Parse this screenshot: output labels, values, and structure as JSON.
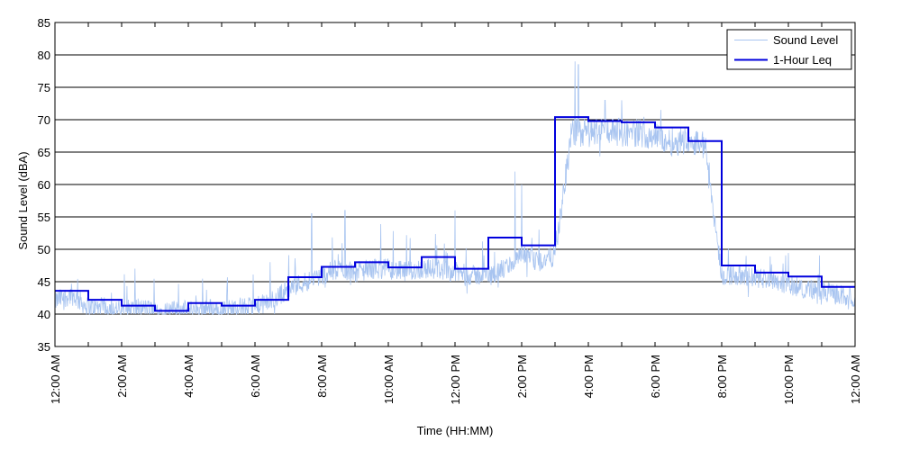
{
  "chart_data": {
    "type": "line",
    "title": "",
    "xlabel": "Time (HH:MM)",
    "ylabel": "Sound Level (dBA)",
    "ylim": [
      35,
      85
    ],
    "y_ticks": [
      "35",
      "40",
      "45",
      "50",
      "55",
      "60",
      "65",
      "70",
      "75",
      "80",
      "85"
    ],
    "xlim_hours": [
      0,
      24
    ],
    "x_tick_hours": [
      0,
      2,
      4,
      6,
      8,
      10,
      12,
      14,
      16,
      18,
      20,
      22,
      24
    ],
    "x_ticks": [
      "12:00 AM",
      "2:00 AM",
      "4:00 AM",
      "6:00 AM",
      "8:00 AM",
      "10:00 AM",
      "12:00 PM",
      "2:00 PM",
      "4:00 PM",
      "6:00 PM",
      "8:00 PM",
      "10:00 PM",
      "12:00 AM"
    ],
    "grid": "horizontal",
    "legend_position": "top-right",
    "series": [
      {
        "name": "Sound Level",
        "color": "#a8c4f0",
        "style": "thin noisy line",
        "x_hours": [
          0,
          0.5,
          1,
          1.5,
          2,
          2.5,
          3,
          3.5,
          4,
          4.5,
          5,
          5.5,
          6,
          6.5,
          7,
          7.5,
          8,
          8.5,
          9,
          9.5,
          10,
          10.5,
          11,
          11.5,
          12,
          12.5,
          13,
          13.5,
          14,
          14.5,
          15,
          15.5,
          16,
          16.5,
          17,
          17.5,
          18,
          18.5,
          19,
          19.5,
          20,
          20.5,
          21,
          21.5,
          22,
          22.5,
          23,
          23.5,
          24
        ],
        "values": [
          42,
          43,
          41,
          41,
          40.5,
          41,
          40.5,
          40.5,
          40.5,
          41,
          40.5,
          41,
          41,
          42,
          44,
          45,
          46,
          47,
          46.5,
          47,
          47,
          46.5,
          47,
          47,
          46.5,
          46,
          46,
          47,
          49,
          48,
          49,
          68,
          68,
          68.5,
          68,
          68,
          67.5,
          66.5,
          67,
          66,
          46,
          46,
          45.5,
          45.5,
          44.5,
          44,
          43.5,
          43,
          42.5
        ],
        "peaks": [
          {
            "hour": 15.6,
            "value": 79
          },
          {
            "hour": 15.7,
            "value": 78.5
          },
          {
            "hour": 13.8,
            "value": 62
          },
          {
            "hour": 14.0,
            "value": 60
          },
          {
            "hour": 8.7,
            "value": 56
          },
          {
            "hour": 7.7,
            "value": 55.5
          },
          {
            "hour": 12.0,
            "value": 56
          },
          {
            "hour": 16.5,
            "value": 73
          },
          {
            "hour": 17.0,
            "value": 73
          }
        ]
      },
      {
        "name": "1-Hour Leq",
        "color": "#0000dd",
        "style": "step",
        "hours": [
          0,
          1,
          2,
          3,
          4,
          5,
          6,
          7,
          8,
          9,
          10,
          11,
          12,
          13,
          14,
          15,
          16,
          17,
          18,
          19,
          20,
          21,
          22,
          23
        ],
        "values": [
          43.6,
          42.2,
          41.3,
          40.5,
          41.7,
          41.3,
          42.2,
          45.7,
          47.3,
          48.0,
          47.2,
          48.8,
          47.0,
          51.8,
          50.6,
          70.4,
          69.8,
          69.6,
          68.8,
          66.7,
          47.5,
          46.4,
          45.8,
          44.2
        ]
      }
    ]
  }
}
